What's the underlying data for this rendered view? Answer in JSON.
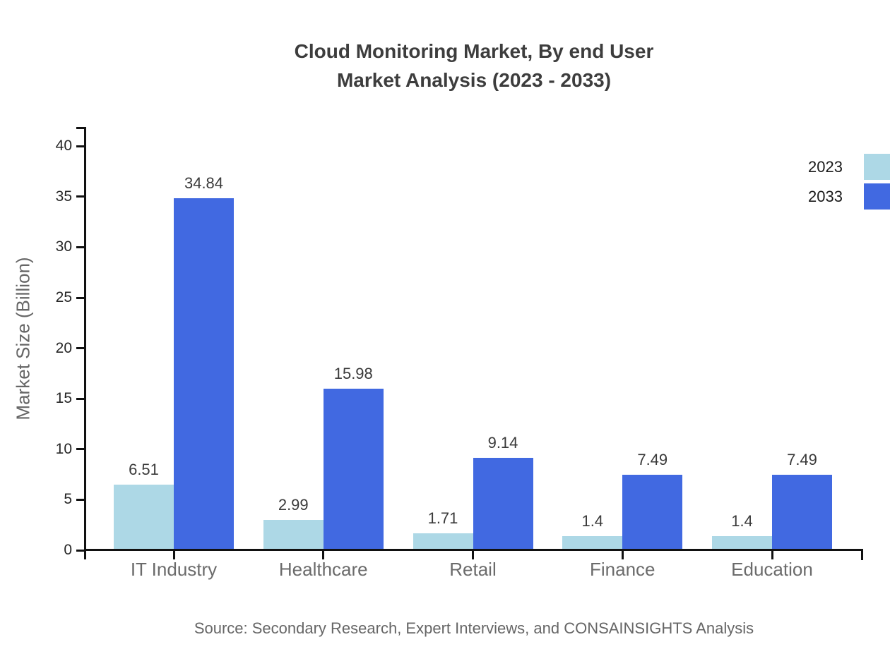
{
  "title": {
    "line1": "Cloud Monitoring Market, By end User",
    "line2": "Market Analysis (2023 - 2033)"
  },
  "y_axis": {
    "label": "Market Size (Billion)",
    "ticks": [
      0,
      5,
      10,
      15,
      20,
      25,
      30,
      35,
      40
    ]
  },
  "source": "Source: Secondary Research, Expert Interviews, and CONSAINSIGHTS Analysis",
  "colors": {
    "series_2023": "#ADD8E6",
    "series_2033": "#4169E1",
    "axis": "#111111"
  },
  "chart_data": {
    "type": "bar",
    "title": "Cloud Monitoring Market, By end User Market Analysis (2023 - 2033)",
    "categories": [
      "IT Industry",
      "Healthcare",
      "Retail",
      "Finance",
      "Education"
    ],
    "series": [
      {
        "name": "2023",
        "color": "#ADD8E6",
        "values": [
          6.51,
          2.99,
          1.71,
          1.4,
          1.4
        ],
        "labels": [
          "6.51",
          "2.99",
          "1.71",
          "1.4",
          "1.4"
        ]
      },
      {
        "name": "2033",
        "color": "#4169E1",
        "values": [
          34.84,
          15.98,
          9.14,
          7.49,
          7.49
        ],
        "labels": [
          "34.84",
          "15.98",
          "9.14",
          "7.49",
          "7.49"
        ]
      }
    ],
    "xlabel": "",
    "ylabel": "Market Size (Billion)",
    "ylim": [
      0,
      40
    ],
    "y_ticks": [
      0,
      5,
      10,
      15,
      20,
      25,
      30,
      35,
      40
    ],
    "grid": false,
    "legend_position": "top-right"
  }
}
